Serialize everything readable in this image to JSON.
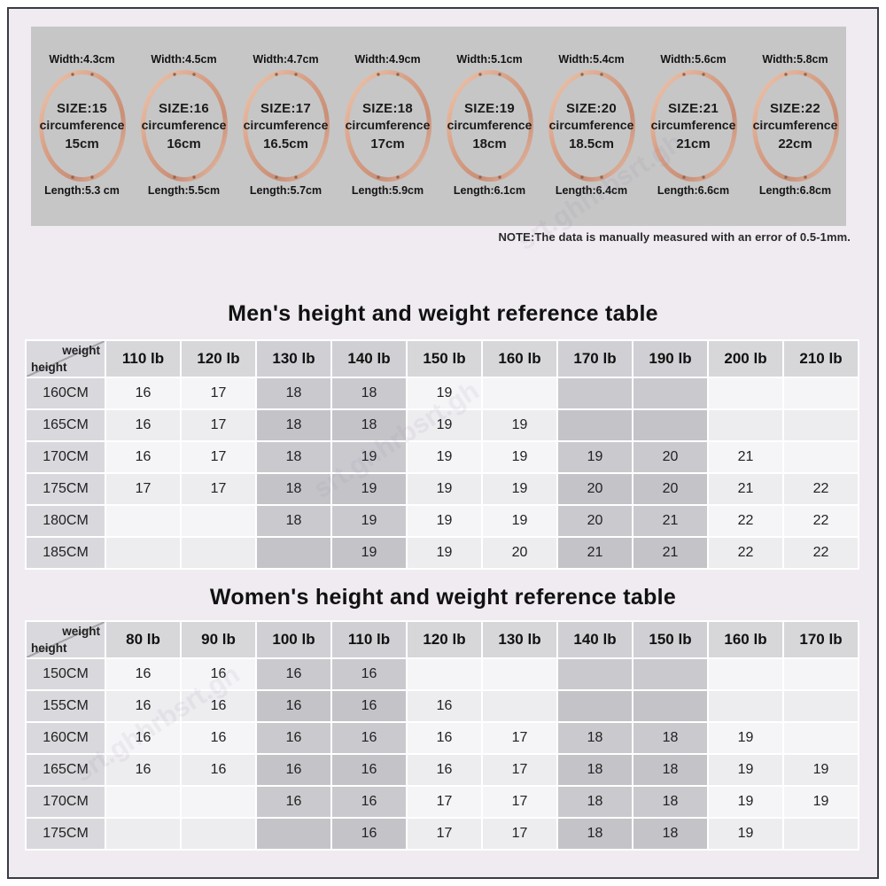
{
  "page": {
    "note": "NOTE:The data is manually measured with an error of 0.5-1mm.",
    "watermark": "srt.ghhrbsrt.gh"
  },
  "colors": {
    "page-bg": "#ffffff",
    "frame-border": "#3b3b43",
    "inner-bg": "#efebf1",
    "panel-bg": "#c6c6c6",
    "head-bg": "#d7d6d9",
    "head-shaded-bg": "#d0cfd3",
    "label-bg": "#d9d8dc",
    "cell-light": "#f5f4f6",
    "cell-light-alt": "#edecef",
    "cell-dark": "#cac9ce",
    "cell-dark-alt": "#c4c3c8",
    "ring-copper": "#d79f85",
    "ring-copper-light": "#eec9b2",
    "ring-copper-dark": "#c98f77"
  },
  "rings": {
    "circumference_word": "circumference",
    "items": [
      {
        "width_label": "Width:4.3cm",
        "size_label": "SIZE:15",
        "circ_value": "15cm",
        "length_label": "Length:5.3 cm"
      },
      {
        "width_label": "Width:4.5cm",
        "size_label": "SIZE:16",
        "circ_value": "16cm",
        "length_label": "Length:5.5cm"
      },
      {
        "width_label": "Width:4.7cm",
        "size_label": "SIZE:17",
        "circ_value": "16.5cm",
        "length_label": "Length:5.7cm"
      },
      {
        "width_label": "Width:4.9cm",
        "size_label": "SIZE:18",
        "circ_value": "17cm",
        "length_label": "Length:5.9cm"
      },
      {
        "width_label": "Width:5.1cm",
        "size_label": "SIZE:19",
        "circ_value": "18cm",
        "length_label": "Length:6.1cm"
      },
      {
        "width_label": "Width:5.4cm",
        "size_label": "SIZE:20",
        "circ_value": "18.5cm",
        "length_label": "Length:6.4cm"
      },
      {
        "width_label": "Width:5.6cm",
        "size_label": "SIZE:21",
        "circ_value": "21cm",
        "length_label": "Length:6.6cm"
      },
      {
        "width_label": "Width:5.8cm",
        "size_label": "SIZE:22",
        "circ_value": "22cm",
        "length_label": "Length:6.8cm"
      }
    ]
  },
  "men_table": {
    "title": "Men's height and weight reference table",
    "corner": {
      "top": "weight",
      "bottom": "height"
    },
    "columns": [
      "110 lb",
      "120 lb",
      "130 lb",
      "140 lb",
      "150 lb",
      "160 lb",
      "170 lb",
      "190 lb",
      "200 lb",
      "210 lb"
    ],
    "shaded_columns": [
      2,
      3,
      6,
      7
    ],
    "rows": [
      {
        "label": "160CM",
        "values": [
          "16",
          "17",
          "18",
          "18",
          "19",
          "",
          "",
          "",
          "",
          ""
        ]
      },
      {
        "label": "165CM",
        "values": [
          "16",
          "17",
          "18",
          "18",
          "19",
          "19",
          "",
          "",
          "",
          ""
        ]
      },
      {
        "label": "170CM",
        "values": [
          "16",
          "17",
          "18",
          "19",
          "19",
          "19",
          "19",
          "20",
          "21",
          ""
        ]
      },
      {
        "label": "175CM",
        "values": [
          "17",
          "17",
          "18",
          "19",
          "19",
          "19",
          "20",
          "20",
          "21",
          "22"
        ]
      },
      {
        "label": "180CM",
        "values": [
          "",
          "",
          "18",
          "19",
          "19",
          "19",
          "20",
          "21",
          "22",
          "22"
        ]
      },
      {
        "label": "185CM",
        "values": [
          "",
          "",
          "",
          "19",
          "19",
          "20",
          "21",
          "21",
          "22",
          "22"
        ]
      }
    ]
  },
  "women_table": {
    "title": "Women's height and weight reference table",
    "corner": {
      "top": "weight",
      "bottom": "height"
    },
    "columns": [
      "80 lb",
      "90 lb",
      "100 lb",
      "110 lb",
      "120 lb",
      "130 lb",
      "140 lb",
      "150 lb",
      "160 lb",
      "170 lb"
    ],
    "shaded_columns": [
      2,
      3,
      6,
      7
    ],
    "rows": [
      {
        "label": "150CM",
        "values": [
          "16",
          "16",
          "16",
          "16",
          "",
          "",
          "",
          "",
          "",
          ""
        ]
      },
      {
        "label": "155CM",
        "values": [
          "16",
          "16",
          "16",
          "16",
          "16",
          "",
          "",
          "",
          "",
          ""
        ]
      },
      {
        "label": "160CM",
        "values": [
          "16",
          "16",
          "16",
          "16",
          "16",
          "17",
          "18",
          "18",
          "19",
          ""
        ]
      },
      {
        "label": "165CM",
        "values": [
          "16",
          "16",
          "16",
          "16",
          "16",
          "17",
          "18",
          "18",
          "19",
          "19"
        ]
      },
      {
        "label": "170CM",
        "values": [
          "",
          "",
          "16",
          "16",
          "17",
          "17",
          "18",
          "18",
          "19",
          "19"
        ]
      },
      {
        "label": "175CM",
        "values": [
          "",
          "",
          "",
          "16",
          "17",
          "17",
          "18",
          "18",
          "19",
          ""
        ]
      }
    ]
  }
}
